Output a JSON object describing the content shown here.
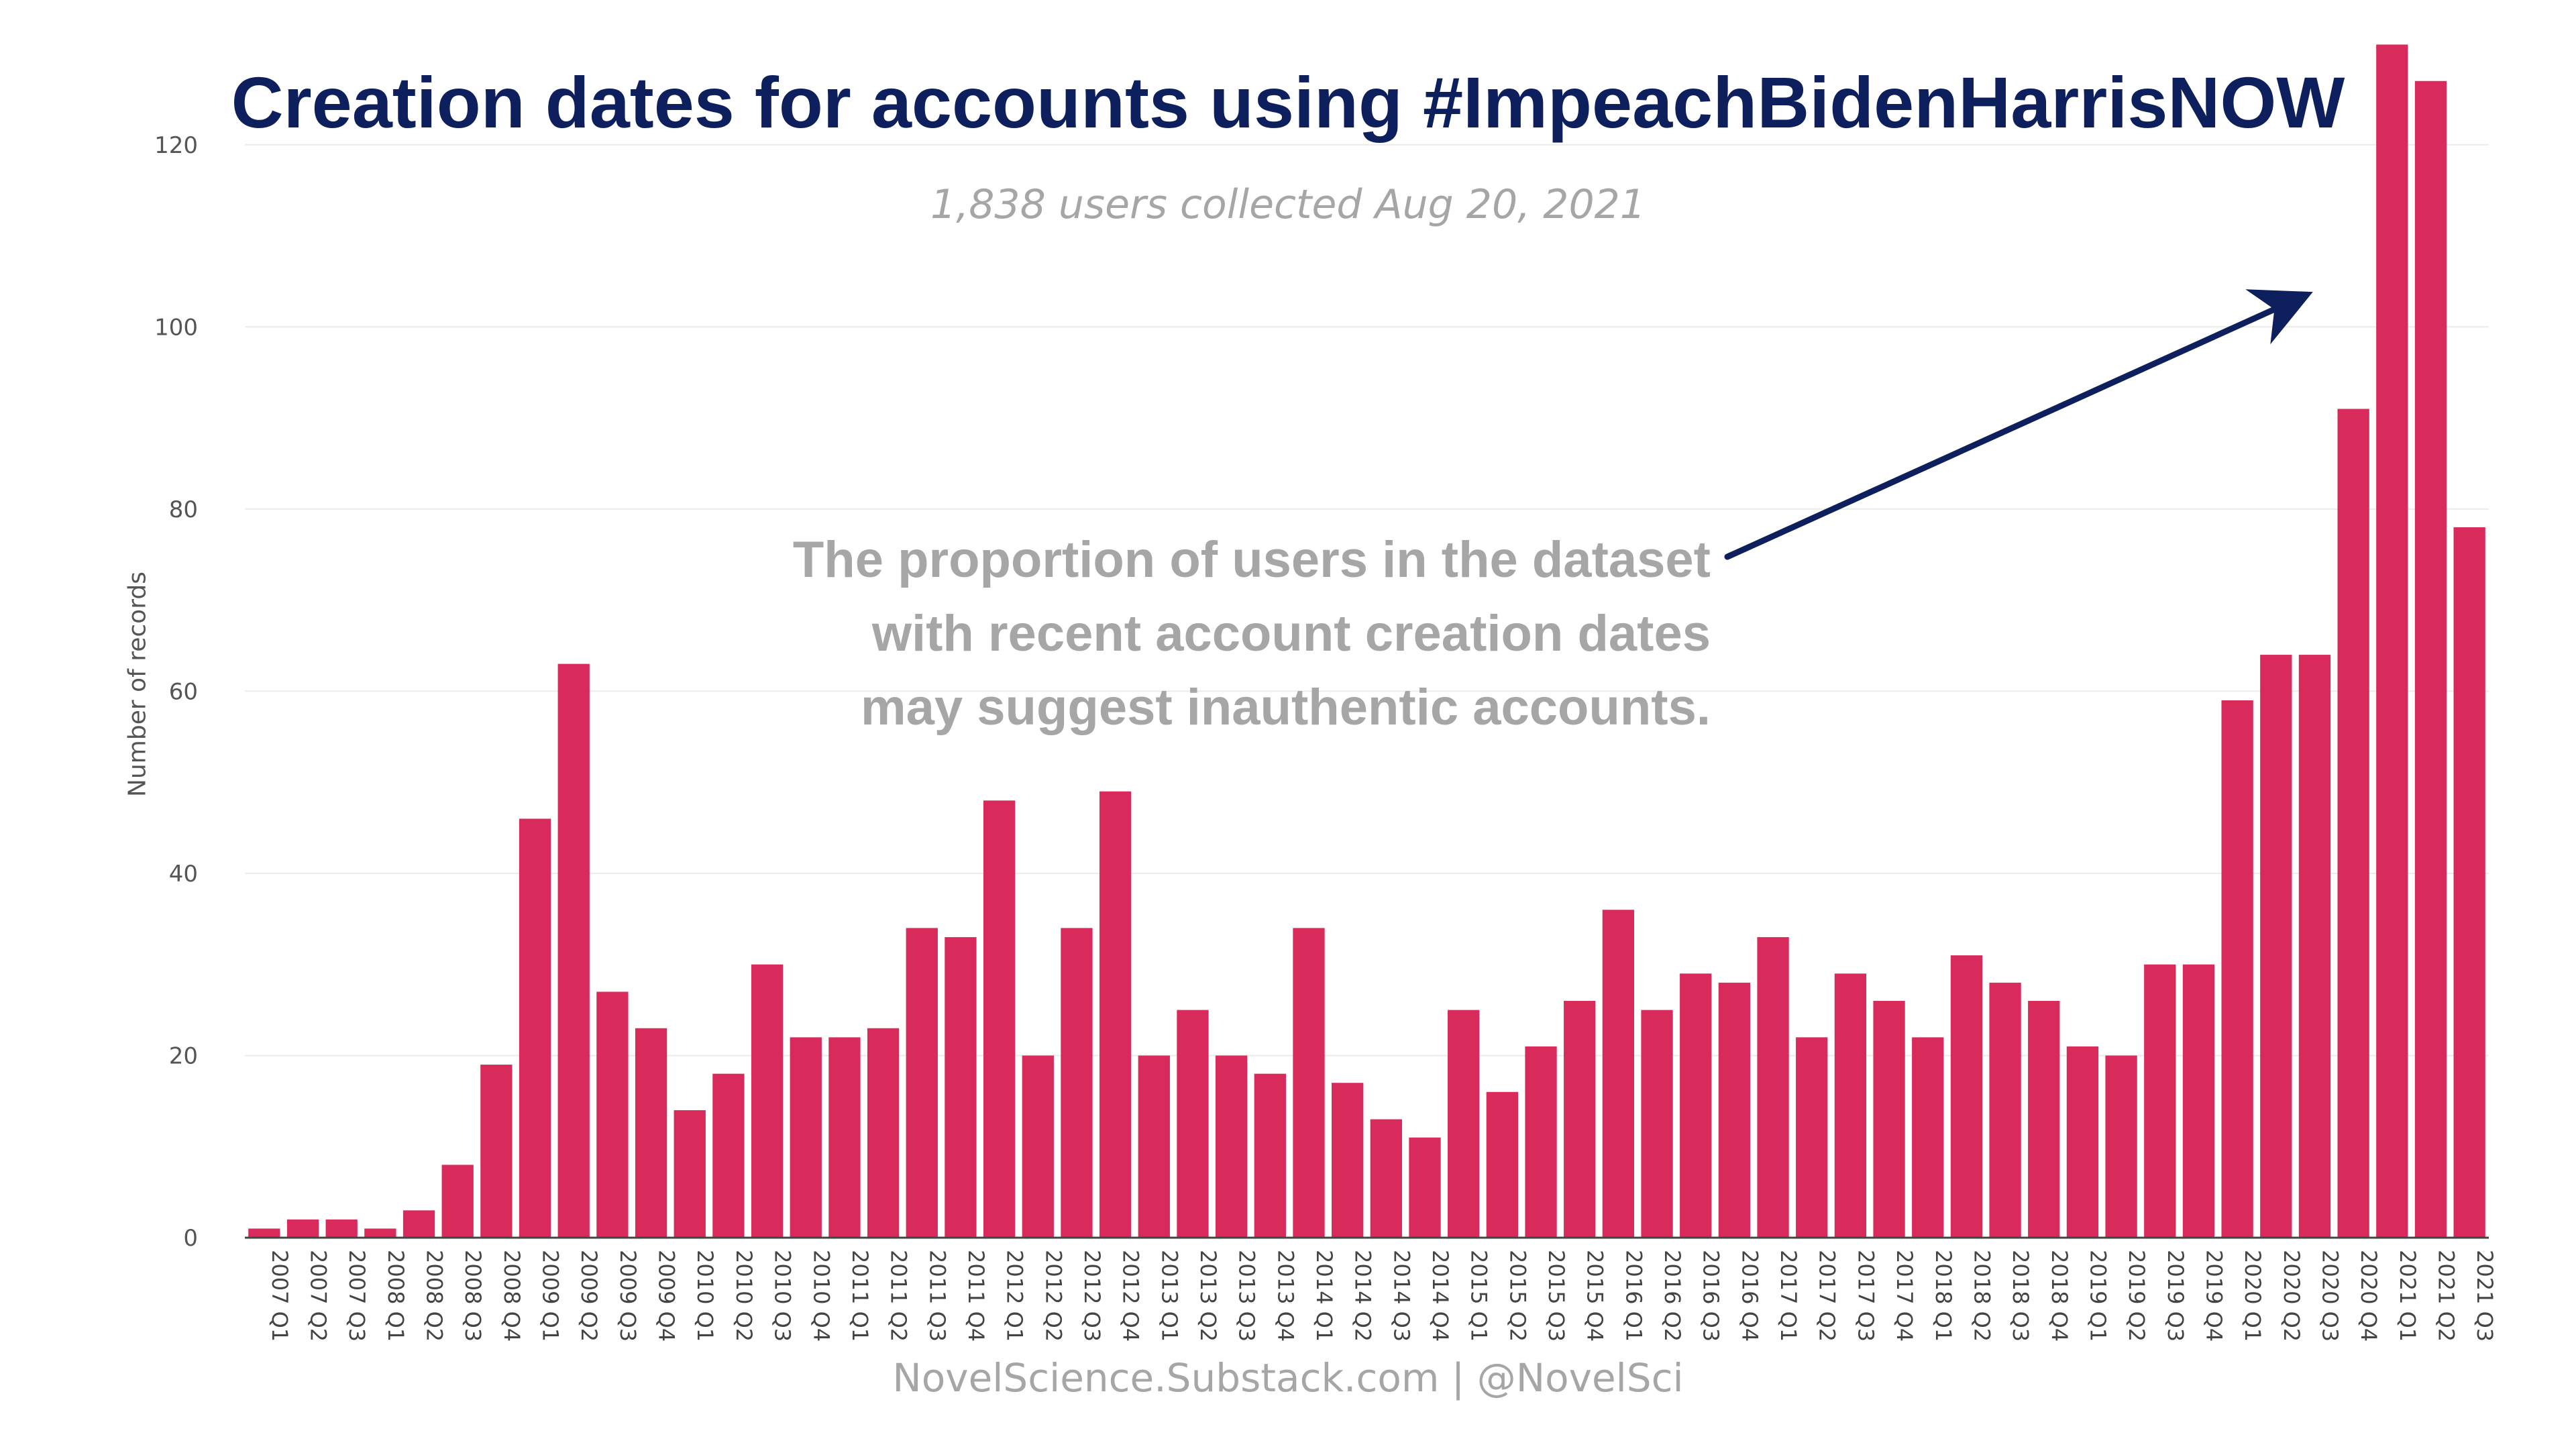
{
  "chart_data": {
    "type": "bar",
    "title": "Creation dates for accounts using #ImpeachBidenHarrisNOW",
    "subtitle": "1,838 users collected Aug 20, 2021",
    "ylabel": "Number of records",
    "xlabel": "",
    "ylim": [
      0,
      130
    ],
    "yticks": [
      0,
      20,
      40,
      60,
      80,
      100,
      120
    ],
    "grid": true,
    "bar_color": "#d82b5b",
    "categories": [
      "2007 Q1",
      "2007 Q2",
      "2007 Q3",
      "2008 Q1",
      "2008 Q2",
      "2008 Q3",
      "2008 Q4",
      "2009 Q1",
      "2009 Q2",
      "2009 Q3",
      "2009 Q4",
      "2010 Q1",
      "2010 Q2",
      "2010 Q3",
      "2010 Q4",
      "2011 Q1",
      "2011 Q2",
      "2011 Q3",
      "2011 Q4",
      "2012 Q1",
      "2012 Q2",
      "2012 Q3",
      "2012 Q4",
      "2013 Q1",
      "2013 Q2",
      "2013 Q3",
      "2013 Q4",
      "2014 Q1",
      "2014 Q2",
      "2014 Q3",
      "2014 Q4",
      "2015 Q1",
      "2015 Q2",
      "2015 Q3",
      "2015 Q4",
      "2016 Q1",
      "2016 Q2",
      "2016 Q3",
      "2016 Q4",
      "2017 Q1",
      "2017 Q2",
      "2017 Q3",
      "2017 Q4",
      "2018 Q1",
      "2018 Q2",
      "2018 Q3",
      "2018 Q4",
      "2019 Q1",
      "2019 Q2",
      "2019 Q3",
      "2019 Q4",
      "2020 Q1",
      "2020 Q2",
      "2020 Q3",
      "2020 Q4",
      "2021 Q1",
      "2021 Q2",
      "2021 Q3"
    ],
    "values": [
      1,
      2,
      2,
      1,
      3,
      8,
      19,
      46,
      63,
      27,
      23,
      14,
      18,
      30,
      22,
      22,
      23,
      34,
      33,
      48,
      20,
      34,
      49,
      20,
      25,
      20,
      18,
      34,
      17,
      13,
      11,
      25,
      16,
      21,
      26,
      36,
      25,
      29,
      28,
      33,
      22,
      29,
      26,
      22,
      31,
      28,
      26,
      21,
      20,
      30,
      30,
      59,
      64,
      64,
      91,
      131,
      127,
      78
    ],
    "annotation": {
      "lines": [
        "The proportion of users in the dataset",
        "with recent account creation dates",
        "may suggest inauthentic accounts."
      ],
      "arrow_color": "#0d1f5c"
    },
    "footer": "NovelScience.Substack.com | @NovelSci"
  }
}
